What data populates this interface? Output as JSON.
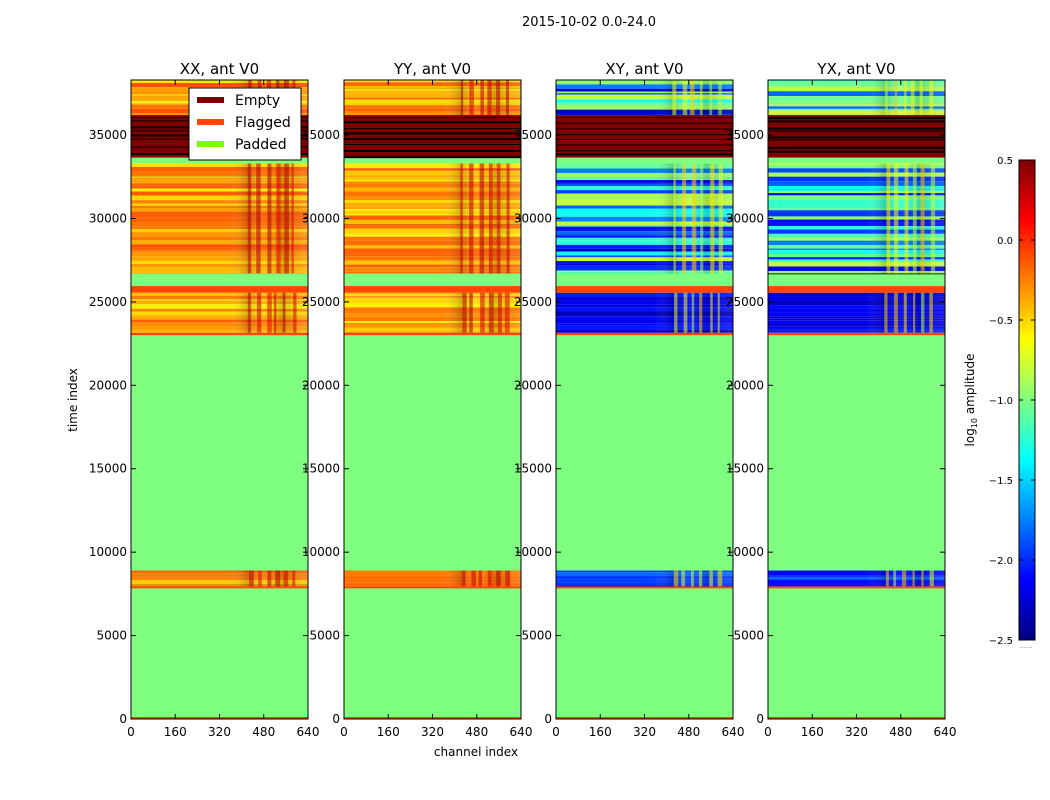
{
  "chart_data": {
    "type": "heatmap",
    "suptitle": "2015-10-02 0.0-24.0",
    "xlabel": "channel index",
    "ylabel": "time index",
    "xlim": [
      0,
      640
    ],
    "ylim": [
      0,
      38300
    ],
    "xticks": [
      0,
      160,
      320,
      480,
      640
    ],
    "yticks": [
      0,
      5000,
      10000,
      15000,
      20000,
      25000,
      30000,
      35000
    ],
    "colorbar": {
      "label_prefix": "log",
      "label_sub": "10",
      "label_suffix": " amplitude",
      "range": [
        -2.5,
        0.5
      ],
      "ticks": [
        0.5,
        0.0,
        -0.5,
        -1.0,
        -1.5,
        -2.0,
        -2.5
      ],
      "tick_labels": [
        "0.5",
        "0.0",
        "−0.5",
        "−1.0",
        "−1.5",
        "−2.0",
        "−2.5"
      ],
      "colormap": "jet",
      "colormap_stops": [
        "#00007f",
        "#0000ff",
        "#007fff",
        "#00ffff",
        "#7fff7f",
        "#ffff00",
        "#ff7f00",
        "#ff0000",
        "#7f0000"
      ]
    },
    "panels": [
      {
        "title": "XX, ant V0",
        "kind": "parallel"
      },
      {
        "title": "YY, ant V0",
        "kind": "parallel"
      },
      {
        "title": "XY, ant V0",
        "kind": "cross"
      },
      {
        "title": "YX, ant V0",
        "kind": "cross"
      }
    ],
    "legend": {
      "location": "upper-center of first panel",
      "entries": [
        {
          "label": "Empty",
          "color": "#800000"
        },
        {
          "label": "Flagged",
          "color": "#ff4500"
        },
        {
          "label": "Padded",
          "color": "#7cfc00"
        }
      ]
    },
    "padded_value": -1.0,
    "padded_color": "#7fff7f",
    "segments": [
      {
        "t0": 0,
        "t1": 120,
        "state": "flagged"
      },
      {
        "t0": 120,
        "t1": 7850,
        "state": "padded"
      },
      {
        "t0": 7850,
        "t1": 7950,
        "state": "flagged"
      },
      {
        "t0": 7950,
        "t1": 8900,
        "state": "data"
      },
      {
        "t0": 8900,
        "t1": 23000,
        "state": "padded"
      },
      {
        "t0": 23000,
        "t1": 23150,
        "state": "flagged"
      },
      {
        "t0": 23150,
        "t1": 25550,
        "state": "data"
      },
      {
        "t0": 25550,
        "t1": 25950,
        "state": "flagged"
      },
      {
        "t0": 25950,
        "t1": 26700,
        "state": "padded"
      },
      {
        "t0": 26700,
        "t1": 33300,
        "state": "data"
      },
      {
        "t0": 33300,
        "t1": 33650,
        "state": "padded"
      },
      {
        "t0": 33650,
        "t1": 36200,
        "state": "empty"
      },
      {
        "t0": 36200,
        "t1": 38300,
        "state": "data"
      }
    ]
  }
}
